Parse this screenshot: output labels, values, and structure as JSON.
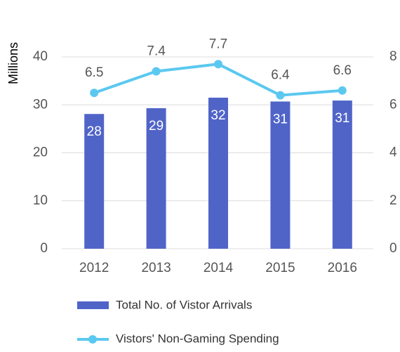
{
  "chart_data": {
    "type": "bar",
    "ylabel": "Millions",
    "categories": [
      "2012",
      "2013",
      "2014",
      "2015",
      "2016"
    ],
    "series": [
      {
        "name": "Total No. of Vistor Arrivals",
        "type": "bar",
        "color": "#5064c8",
        "values": [
          28.1,
          29.3,
          31.5,
          30.7,
          30.9
        ],
        "value_labels": [
          "28",
          "29",
          "32",
          "31",
          "31"
        ]
      },
      {
        "name": "Vistors' Non-Gaming Spending",
        "type": "line",
        "axis": "y2",
        "color": "#5bc8f0",
        "values": [
          6.5,
          7.4,
          7.7,
          6.4,
          6.6
        ]
      }
    ],
    "ylim": [
      0,
      40
    ],
    "yticks": [
      0,
      10,
      20,
      30,
      40
    ],
    "y2lim": [
      0,
      8
    ],
    "y2ticks": [
      0,
      2,
      4,
      6,
      8
    ],
    "grid": true
  }
}
